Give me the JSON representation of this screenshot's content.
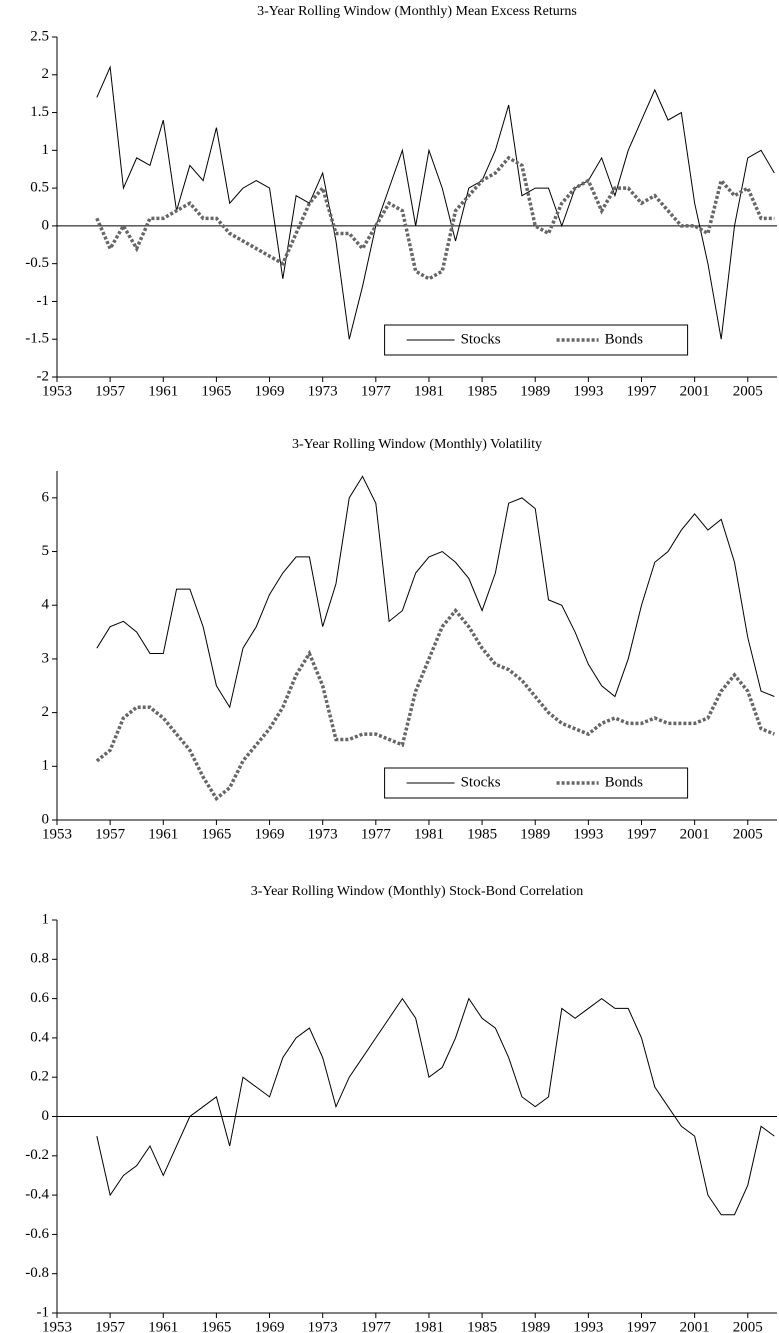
{
  "chart_data": [
    {
      "type": "line",
      "title": "3-Year Rolling Window (Monthly) Mean Excess Returns",
      "x": [
        1956,
        1957,
        1958,
        1959,
        1960,
        1961,
        1962,
        1963,
        1964,
        1965,
        1966,
        1967,
        1968,
        1969,
        1970,
        1971,
        1972,
        1973,
        1974,
        1975,
        1976,
        1977,
        1978,
        1979,
        1980,
        1981,
        1982,
        1983,
        1984,
        1985,
        1986,
        1987,
        1988,
        1989,
        1990,
        1991,
        1992,
        1993,
        1994,
        1995,
        1996,
        1997,
        1998,
        1999,
        2000,
        2001,
        2002,
        2003,
        2004,
        2005,
        2006,
        2007
      ],
      "series": [
        {
          "name": "Stocks",
          "color": "#000000",
          "line_style": "solid",
          "values": [
            1.7,
            2.1,
            0.5,
            0.9,
            0.8,
            1.4,
            0.2,
            0.8,
            0.6,
            1.3,
            0.3,
            0.5,
            0.6,
            0.5,
            -0.7,
            0.4,
            0.3,
            0.7,
            -0.2,
            -1.5,
            -0.8,
            0.0,
            0.5,
            1.0,
            0.0,
            1.0,
            0.5,
            -0.2,
            0.5,
            0.6,
            1.0,
            1.6,
            0.4,
            0.5,
            0.5,
            0.0,
            0.5,
            0.6,
            0.9,
            0.4,
            1.0,
            1.4,
            1.8,
            1.4,
            1.5,
            0.3,
            -0.5,
            -1.5,
            0.0,
            0.9,
            1.0,
            0.7
          ]
        },
        {
          "name": "Bonds",
          "color": "#666666",
          "line_style": "dashed",
          "values": [
            0.1,
            -0.3,
            0.0,
            -0.3,
            0.1,
            0.1,
            0.2,
            0.3,
            0.1,
            0.1,
            -0.1,
            -0.2,
            -0.3,
            -0.4,
            -0.5,
            -0.1,
            0.3,
            0.5,
            -0.1,
            -0.1,
            -0.3,
            0.0,
            0.3,
            0.2,
            -0.6,
            -0.7,
            -0.6,
            0.2,
            0.4,
            0.6,
            0.7,
            0.9,
            0.8,
            0.0,
            -0.1,
            0.3,
            0.5,
            0.6,
            0.2,
            0.5,
            0.5,
            0.3,
            0.4,
            0.2,
            0.0,
            0.0,
            -0.1,
            0.6,
            0.4,
            0.5,
            0.1,
            0.1
          ]
        }
      ],
      "xlim": [
        1953,
        2007.2
      ],
      "xticks": [
        1953,
        1957,
        1961,
        1965,
        1969,
        1973,
        1977,
        1981,
        1985,
        1989,
        1993,
        1997,
        2001,
        2005
      ],
      "ylim": [
        -2,
        2.5
      ],
      "yticks": [
        -2,
        -1.5,
        -1,
        -0.5,
        0,
        0.5,
        1,
        1.5,
        2,
        2.5
      ],
      "grid": false,
      "legend": "lower right"
    },
    {
      "type": "line",
      "title": "3-Year Rolling Window (Monthly) Volatility",
      "x": [
        1956,
        1957,
        1958,
        1959,
        1960,
        1961,
        1962,
        1963,
        1964,
        1965,
        1966,
        1967,
        1968,
        1969,
        1970,
        1971,
        1972,
        1973,
        1974,
        1975,
        1976,
        1977,
        1978,
        1979,
        1980,
        1981,
        1982,
        1983,
        1984,
        1985,
        1986,
        1987,
        1988,
        1989,
        1990,
        1991,
        1992,
        1993,
        1994,
        1995,
        1996,
        1997,
        1998,
        1999,
        2000,
        2001,
        2002,
        2003,
        2004,
        2005,
        2006,
        2007
      ],
      "series": [
        {
          "name": "Stocks",
          "color": "#000000",
          "line_style": "solid",
          "values": [
            3.2,
            3.6,
            3.7,
            3.5,
            3.1,
            3.1,
            4.3,
            4.3,
            3.6,
            2.5,
            2.1,
            3.2,
            3.6,
            4.2,
            4.6,
            4.9,
            4.9,
            3.6,
            4.4,
            6.0,
            6.4,
            5.9,
            3.7,
            3.9,
            4.6,
            4.9,
            5.0,
            4.8,
            4.5,
            3.9,
            4.6,
            5.9,
            6.0,
            5.8,
            4.1,
            4.0,
            3.5,
            2.9,
            2.5,
            2.3,
            3.0,
            4.0,
            4.8,
            5.0,
            5.4,
            5.7,
            5.4,
            5.6,
            4.8,
            3.4,
            2.4,
            2.3
          ]
        },
        {
          "name": "Bonds",
          "color": "#666666",
          "line_style": "dashed",
          "values": [
            1.1,
            1.3,
            1.9,
            2.1,
            2.1,
            1.9,
            1.6,
            1.3,
            0.8,
            0.4,
            0.6,
            1.1,
            1.4,
            1.7,
            2.1,
            2.7,
            3.1,
            2.5,
            1.5,
            1.5,
            1.6,
            1.6,
            1.5,
            1.4,
            2.4,
            3.0,
            3.6,
            3.9,
            3.6,
            3.2,
            2.9,
            2.8,
            2.6,
            2.3,
            2.0,
            1.8,
            1.7,
            1.6,
            1.8,
            1.9,
            1.8,
            1.8,
            1.9,
            1.8,
            1.8,
            1.8,
            1.9,
            2.4,
            2.7,
            2.4,
            1.7,
            1.6
          ]
        }
      ],
      "xlim": [
        1953,
        2007.2
      ],
      "xticks": [
        1953,
        1957,
        1961,
        1965,
        1969,
        1973,
        1977,
        1981,
        1985,
        1989,
        1993,
        1997,
        2001,
        2005
      ],
      "ylim": [
        0,
        6.5
      ],
      "yticks": [
        0,
        1,
        2,
        3,
        4,
        5,
        6
      ],
      "grid": false,
      "legend": "lower right"
    },
    {
      "type": "line",
      "title": "3-Year Rolling Window (Monthly) Stock-Bond Correlation",
      "x": [
        1956,
        1957,
        1958,
        1959,
        1960,
        1961,
        1962,
        1963,
        1964,
        1965,
        1966,
        1967,
        1968,
        1969,
        1970,
        1971,
        1972,
        1973,
        1974,
        1975,
        1976,
        1977,
        1978,
        1979,
        1980,
        1981,
        1982,
        1983,
        1984,
        1985,
        1986,
        1987,
        1988,
        1989,
        1990,
        1991,
        1992,
        1993,
        1994,
        1995,
        1996,
        1997,
        1998,
        1999,
        2000,
        2001,
        2002,
        2003,
        2004,
        2005,
        2006,
        2007
      ],
      "series": [
        {
          "color": "#000000",
          "line_style": "solid",
          "values": [
            -0.1,
            -0.4,
            -0.3,
            -0.25,
            -0.15,
            -0.3,
            -0.15,
            0.0,
            0.05,
            0.1,
            -0.15,
            0.2,
            0.15,
            0.1,
            0.3,
            0.4,
            0.45,
            0.3,
            0.05,
            0.2,
            0.3,
            0.4,
            0.5,
            0.6,
            0.5,
            0.2,
            0.25,
            0.4,
            0.6,
            0.5,
            0.45,
            0.3,
            0.1,
            0.05,
            0.1,
            0.55,
            0.5,
            0.55,
            0.6,
            0.55,
            0.55,
            0.4,
            0.15,
            0.05,
            -0.05,
            -0.1,
            -0.4,
            -0.5,
            -0.5,
            -0.35,
            -0.05,
            -0.1
          ]
        }
      ],
      "xlim": [
        1953,
        2007.2
      ],
      "xticks": [
        1953,
        1957,
        1961,
        1965,
        1969,
        1973,
        1977,
        1981,
        1985,
        1989,
        1993,
        1997,
        2001,
        2005
      ],
      "ylim": [
        -1,
        1
      ],
      "yticks": [
        -1,
        -0.8,
        -0.6,
        -0.4,
        -0.2,
        0,
        0.2,
        0.4,
        0.6,
        0.8,
        1
      ],
      "grid": false
    }
  ]
}
